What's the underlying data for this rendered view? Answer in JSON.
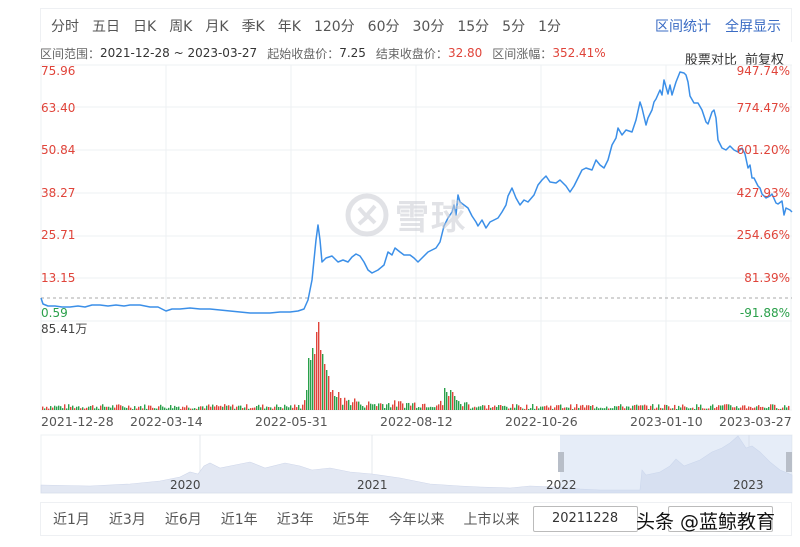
{
  "tabs": [
    "分时",
    "五日",
    "日K",
    "周K",
    "月K",
    "季K",
    "年K",
    "120分",
    "60分",
    "30分",
    "15分",
    "5分",
    "1分"
  ],
  "header_links": {
    "interval_stats": "区间统计",
    "fullscreen": "全屏显示"
  },
  "info": {
    "range_label": "区间范围：",
    "range_value": "2021-12-28 ~ 2023-03-27",
    "start_close_label": "起始收盘价：",
    "start_close_value": "7.25",
    "end_close_label": "结束收盘价：",
    "end_close_value": "32.80",
    "change_label": "区间涨幅：",
    "change_value": "352.41%",
    "compare_label": "股票对比",
    "adjust_label": "前复权"
  },
  "watermark": {
    "text": "雪球"
  },
  "colors": {
    "line": "#3b8fe8",
    "up": "#e0443a",
    "down": "#2aa04a",
    "link": "#3b6cc4",
    "nav_fill": "#dde4f2",
    "nav_selected": "#c8d8f0"
  },
  "chart_data": {
    "type": "line",
    "title": "",
    "period": "日K",
    "adjustment": "前复权",
    "xlabel": "",
    "ylabel": "",
    "ylim": [
      0.59,
      75.96
    ],
    "y_ticks_price": [
      "75.96",
      "63.40",
      "50.84",
      "38.27",
      "25.71",
      "13.15",
      "0.59"
    ],
    "y_ticks_pct": [
      "947.74%",
      "774.47%",
      "601.20%",
      "427.93%",
      "254.66%",
      "81.39%",
      "-91.88%"
    ],
    "x_ticks": [
      "2021-12-28",
      "2022-03-14",
      "2022-05-31",
      "2022-08-12",
      "2022-10-26",
      "2023-01-10",
      "2023-03-27"
    ],
    "baseline_price": 7.25,
    "volume_max_label": "85.41万",
    "series": [
      {
        "name": "收盘价",
        "x": [
          "2021-12-28",
          "2022-01-10",
          "2022-01-25",
          "2022-02-15",
          "2022-03-01",
          "2022-03-14",
          "2022-03-28",
          "2022-04-12",
          "2022-04-26",
          "2022-05-10",
          "2022-05-24",
          "2022-05-31",
          "2022-06-02",
          "2022-06-06",
          "2022-06-10",
          "2022-06-20",
          "2022-07-01",
          "2022-07-12",
          "2022-07-22",
          "2022-08-01",
          "2022-08-12",
          "2022-08-22",
          "2022-08-26",
          "2022-09-05",
          "2022-09-16",
          "2022-09-28",
          "2022-10-14",
          "2022-10-26",
          "2022-11-08",
          "2022-11-22",
          "2022-12-05",
          "2022-12-16",
          "2022-12-28",
          "2023-01-05",
          "2023-01-10",
          "2023-01-16",
          "2023-01-20",
          "2023-02-01",
          "2023-02-10",
          "2023-02-20",
          "2023-03-01",
          "2023-03-10",
          "2023-03-20",
          "2023-03-27"
        ],
        "values": [
          7.25,
          5.5,
          5.6,
          5.8,
          5.4,
          4.2,
          5.0,
          4.8,
          4.2,
          4.0,
          4.6,
          6.5,
          29.0,
          18.0,
          19.5,
          21.0,
          16.0,
          20.5,
          21.0,
          19.0,
          26.0,
          34.0,
          38.0,
          33.0,
          30.0,
          33.0,
          38.0,
          41.0,
          40.0,
          43.0,
          46.0,
          52.0,
          50.0,
          58.0,
          66.0,
          72.0,
          71.0,
          62.0,
          55.0,
          59.0,
          52.0,
          45.0,
          38.0,
          32.8
        ]
      }
    ],
    "volume": {
      "unit": "万",
      "max": 85.41,
      "note": "Spike around 2022-06-01 reaching the max; secondary bump near 2022-09-05"
    },
    "navigator": {
      "year_labels": [
        "2020",
        "2021",
        "2022",
        "2023"
      ],
      "selected_range": [
        "2021-12-28",
        "2023-03-27"
      ]
    }
  },
  "range_buttons": [
    "近1月",
    "近3月",
    "近6月",
    "近1年",
    "近3年",
    "近5年",
    "今年以来",
    "上市以来"
  ],
  "date_inputs": {
    "start": "20211228",
    "end": ""
  },
  "overlay_caption": "头条 @蓝鲸教育"
}
